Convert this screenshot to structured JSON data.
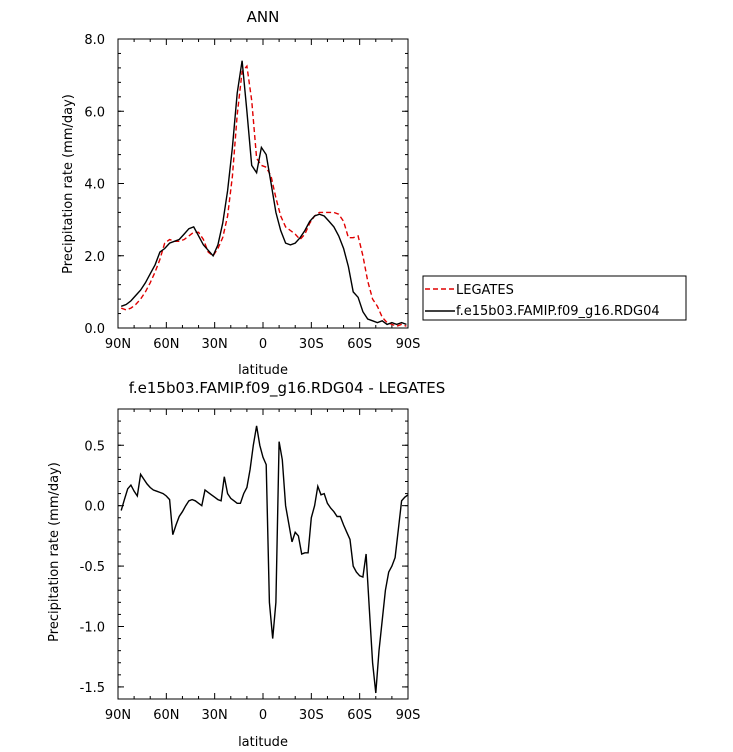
{
  "chart_data": [
    {
      "type": "line",
      "title": "ANN",
      "xlabel": "latitude",
      "ylabel": "Precipitation rate (mm/day)",
      "xlim": [
        -90,
        90
      ],
      "ylim": [
        0,
        8
      ],
      "x_ticks": [
        -90,
        -60,
        -30,
        0,
        30,
        60,
        90
      ],
      "x_tick_labels": [
        "90N",
        "60N",
        "30N",
        "0",
        "30S",
        "60S",
        "90S"
      ],
      "y_ticks": [
        0,
        2,
        4,
        6,
        8
      ],
      "y_tick_labels": [
        "0.0",
        "2.0",
        "4.0",
        "6.0",
        "8.0"
      ],
      "legend_position": "right",
      "series": [
        {
          "name": "LEGATES",
          "color": "#e00000",
          "dash": true,
          "x": [
            -88,
            -85,
            -82,
            -79,
            -76,
            -73,
            -70,
            -67,
            -64,
            -61,
            -58,
            -55,
            -52,
            -49,
            -46,
            -43,
            -40,
            -37,
            -34,
            -31,
            -28,
            -25,
            -22,
            -19,
            -16,
            -13,
            -10,
            -7,
            -4,
            -1,
            2,
            5,
            8,
            11,
            14,
            17,
            20,
            23,
            26,
            29,
            32,
            35,
            38,
            41,
            44,
            47,
            50,
            53,
            56,
            59,
            62,
            65,
            68,
            71,
            74,
            77,
            80,
            83,
            86,
            89
          ],
          "values": [
            0.55,
            0.5,
            0.55,
            0.65,
            0.8,
            1.0,
            1.25,
            1.55,
            1.9,
            2.35,
            2.45,
            2.4,
            2.4,
            2.45,
            2.55,
            2.65,
            2.65,
            2.45,
            2.1,
            2.0,
            2.2,
            2.5,
            3.1,
            4.2,
            5.9,
            7.1,
            7.25,
            6.3,
            4.7,
            4.5,
            4.45,
            4.2,
            3.6,
            3.1,
            2.8,
            2.7,
            2.6,
            2.45,
            2.6,
            2.9,
            3.1,
            3.2,
            3.2,
            3.2,
            3.2,
            3.15,
            2.95,
            2.5,
            2.5,
            2.55,
            2.0,
            1.3,
            0.8,
            0.6,
            0.3,
            0.15,
            0.1,
            0.05,
            0.1,
            0.05
          ]
        },
        {
          "name": "f.e15b03.FAMIP.f09_g16.RDG04",
          "color": "#000000",
          "dash": false,
          "x": [
            -88,
            -85,
            -82,
            -79,
            -76,
            -73,
            -70,
            -67,
            -64,
            -61,
            -58,
            -55,
            -52,
            -49,
            -46,
            -43,
            -40,
            -37,
            -34,
            -31,
            -28,
            -25,
            -22,
            -19,
            -16,
            -13,
            -10,
            -7,
            -4,
            -1,
            2,
            5,
            8,
            11,
            14,
            17,
            20,
            23,
            26,
            29,
            32,
            35,
            38,
            41,
            44,
            47,
            50,
            53,
            56,
            59,
            62,
            65,
            68,
            71,
            74,
            77,
            80,
            83,
            86,
            89
          ],
          "values": [
            0.6,
            0.65,
            0.75,
            0.9,
            1.05,
            1.25,
            1.5,
            1.75,
            2.1,
            2.2,
            2.35,
            2.4,
            2.45,
            2.6,
            2.75,
            2.8,
            2.55,
            2.3,
            2.15,
            2.0,
            2.3,
            2.9,
            3.8,
            5.0,
            6.5,
            7.4,
            6.0,
            4.5,
            4.3,
            5.0,
            4.8,
            4.0,
            3.2,
            2.7,
            2.35,
            2.3,
            2.35,
            2.5,
            2.7,
            2.95,
            3.1,
            3.15,
            3.1,
            2.95,
            2.8,
            2.55,
            2.2,
            1.7,
            1.0,
            0.85,
            0.45,
            0.25,
            0.2,
            0.15,
            0.2,
            0.1,
            0.15,
            0.1,
            0.15,
            0.1
          ]
        }
      ]
    },
    {
      "type": "line",
      "title": "f.e15b03.FAMIP.f09_g16.RDG04 - LEGATES",
      "xlabel": "latitude",
      "ylabel": "Precipitation rate (mm/day)",
      "xlim": [
        -90,
        90
      ],
      "ylim": [
        -1.6,
        0.8
      ],
      "x_ticks": [
        -90,
        -60,
        -30,
        0,
        30,
        60,
        90
      ],
      "x_tick_labels": [
        "90N",
        "60N",
        "30N",
        "0",
        "30S",
        "60S",
        "90S"
      ],
      "y_ticks": [
        -1.5,
        -1.0,
        -0.5,
        0.0,
        0.5
      ],
      "y_tick_labels": [
        "-1.5",
        "-1.0",
        "-0.5",
        "0.0",
        "0.5"
      ],
      "series": [
        {
          "color": "#000000",
          "dash": false,
          "x": [
            -88,
            -86,
            -84,
            -82,
            -80,
            -78,
            -76,
            -74,
            -72,
            -70,
            -68,
            -66,
            -64,
            -62,
            -60,
            -58,
            -56,
            -54,
            -52,
            -50,
            -48,
            -46,
            -44,
            -42,
            -40,
            -38,
            -36,
            -34,
            -32,
            -30,
            -28,
            -26,
            -24,
            -22,
            -20,
            -18,
            -16,
            -14,
            -12,
            -10,
            -8,
            -6,
            -4,
            -2,
            0,
            2,
            4,
            6,
            8,
            10,
            12,
            14,
            16,
            18,
            20,
            22,
            24,
            26,
            28,
            30,
            32,
            34,
            36,
            38,
            40,
            42,
            44,
            46,
            48,
            50,
            52,
            54,
            56,
            58,
            60,
            62,
            64,
            66,
            68,
            70,
            72,
            74,
            76,
            78,
            80,
            82,
            84,
            86,
            88,
            90
          ],
          "values": [
            -0.04,
            0.05,
            0.14,
            0.17,
            0.12,
            0.08,
            0.26,
            0.22,
            0.18,
            0.15,
            0.13,
            0.12,
            0.11,
            0.1,
            0.08,
            0.05,
            -0.24,
            -0.16,
            -0.09,
            -0.05,
            0.0,
            0.04,
            0.05,
            0.04,
            0.02,
            0.0,
            0.13,
            0.11,
            0.09,
            0.07,
            0.05,
            0.04,
            0.24,
            0.1,
            0.06,
            0.04,
            0.02,
            0.02,
            0.1,
            0.15,
            0.3,
            0.5,
            0.66,
            0.5,
            0.4,
            0.34,
            -0.8,
            -1.1,
            -0.8,
            0.53,
            0.38,
            0.0,
            -0.15,
            -0.3,
            -0.22,
            -0.25,
            -0.4,
            -0.39,
            -0.39,
            -0.1,
            0.0,
            0.16,
            0.09,
            0.1,
            0.02,
            -0.02,
            -0.05,
            -0.09,
            -0.09,
            -0.16,
            -0.22,
            -0.28,
            -0.5,
            -0.55,
            -0.58,
            -0.59,
            -0.4,
            -0.85,
            -1.3,
            -1.55,
            -1.2,
            -0.95,
            -0.7,
            -0.55,
            -0.5,
            -0.43,
            -0.2,
            0.04,
            0.07,
            0.09
          ]
        }
      ]
    }
  ]
}
